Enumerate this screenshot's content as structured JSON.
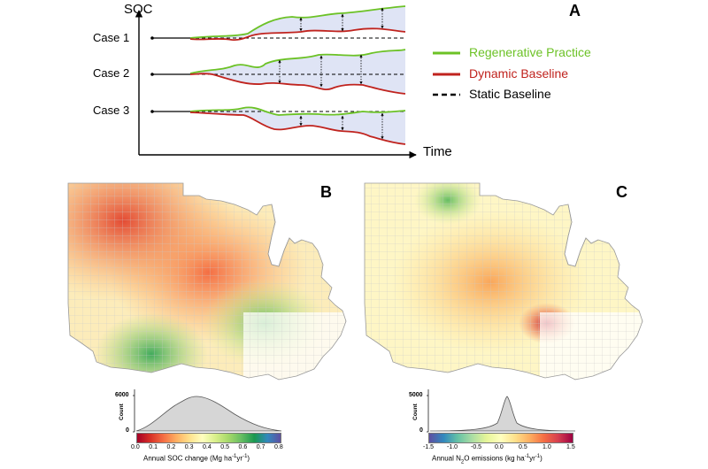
{
  "panelA": {
    "letter": "A",
    "y_axis_label": "SOC",
    "x_axis_label": "Time",
    "cases": [
      "Case 1",
      "Case 2",
      "Case 3"
    ],
    "legend": [
      {
        "label": "Regenerative Practice",
        "color": "#6cc226",
        "style": "solid"
      },
      {
        "label": "Dynamic Baseline",
        "color": "#c0231e",
        "style": "solid"
      },
      {
        "label": "Static Baseline",
        "color": "#000000",
        "style": "dashed"
      }
    ],
    "fill_color": "#dfe4f5"
  },
  "panelB": {
    "letter": "B",
    "histogram": {
      "count_label": "Count",
      "y_max_tick": "6000",
      "y_min_tick": "0",
      "ticks": [
        "0.0",
        "0.1",
        "0.2",
        "0.3",
        "0.4",
        "0.5",
        "0.6",
        "0.7",
        "0.8"
      ],
      "colorbar": [
        "#a50026",
        "#d73027",
        "#f46d43",
        "#fdae61",
        "#fee08b",
        "#ffffbf",
        "#d9ef8b",
        "#a6d96a",
        "#66bd63",
        "#1a9850",
        "#3288bd",
        "#5e4fa2"
      ],
      "axis_title_main": "Annual SOC change (Mg ha",
      "axis_title_sup1": "-1",
      "axis_title_mid": "yr",
      "axis_title_sup2": "-1",
      "axis_title_end": ")"
    }
  },
  "panelC": {
    "letter": "C",
    "histogram": {
      "count_label": "Count",
      "y_max_tick": "5000",
      "y_min_tick": "0",
      "ticks": [
        "-1.5",
        "-1.0",
        "-0.5",
        "0.0",
        "0.5",
        "1.0",
        "1.5"
      ],
      "colorbar": [
        "#5e4fa2",
        "#3288bd",
        "#66c2a5",
        "#abdda4",
        "#e6f598",
        "#ffffbf",
        "#fee08b",
        "#fdae61",
        "#f46d43",
        "#d53e4f",
        "#9e0142"
      ],
      "axis_title_main": "Annual N",
      "axis_title_sub": "2",
      "axis_title_mid": "O emissions (kg ha",
      "axis_title_sup1": "-1",
      "axis_title_mid2": "yr",
      "axis_title_sup2": "-1",
      "axis_title_end": ")"
    }
  }
}
